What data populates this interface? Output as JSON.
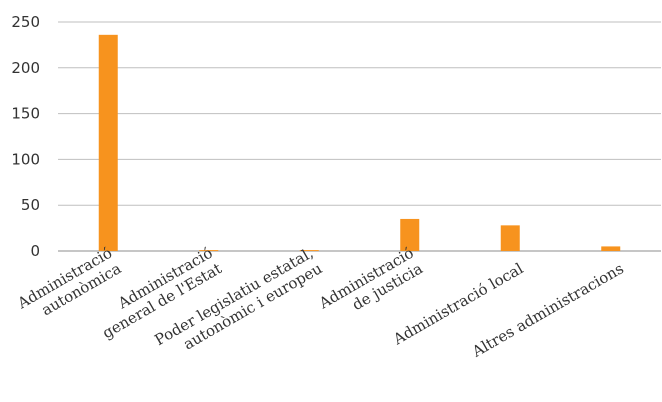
{
  "chart_data": {
    "type": "bar",
    "categories": [
      [
        "Administració",
        "autonòmica"
      ],
      [
        "Administració",
        "general de l'Estat"
      ],
      [
        "Poder legislatiu estatal,",
        "autonòmic i europeu"
      ],
      [
        "Administració",
        "de justicia"
      ],
      [
        "Administració local"
      ],
      [
        "Altres administracions"
      ]
    ],
    "values": [
      236,
      1,
      1,
      35,
      28,
      5
    ],
    "ylim": [
      0,
      250
    ],
    "yticks": [
      0,
      50,
      100,
      150,
      200,
      250
    ],
    "grid": true,
    "legend": "none",
    "colors": {
      "bar": "#f7931e"
    }
  }
}
